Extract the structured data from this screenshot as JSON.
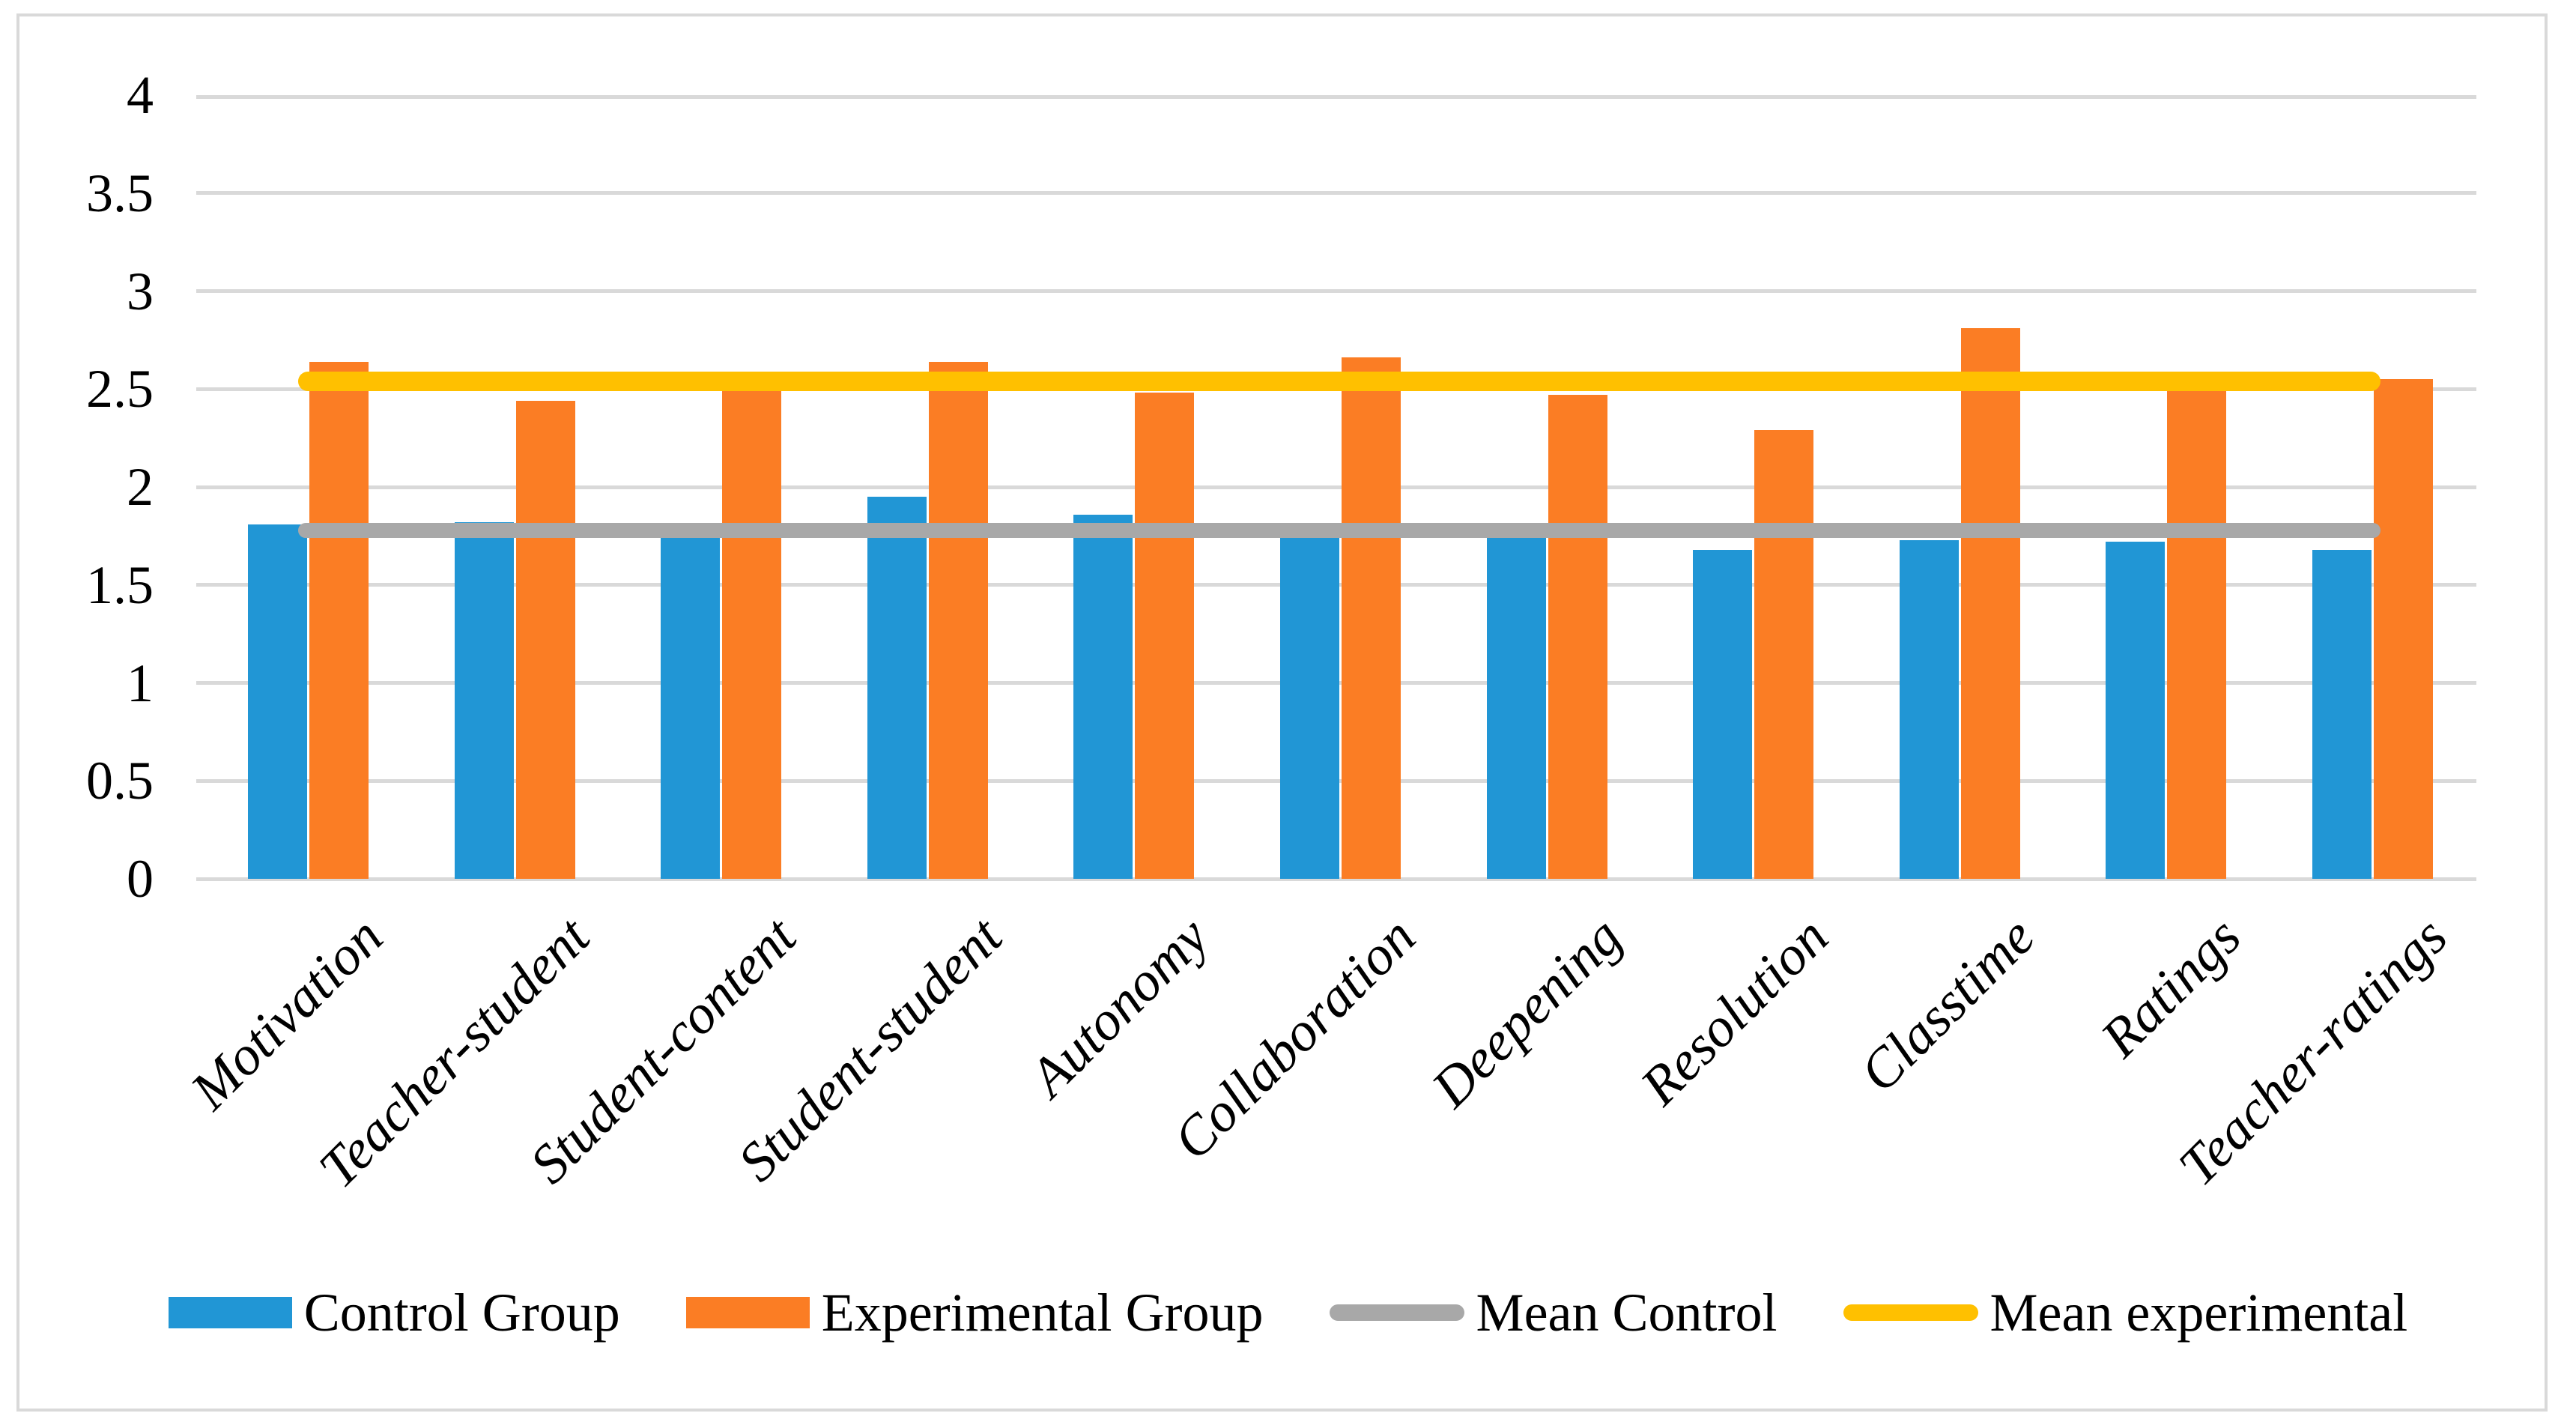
{
  "chart_data": {
    "type": "bar",
    "title": "",
    "xlabel": "",
    "ylabel": "",
    "ylim": [
      0,
      4
    ],
    "ytick_step": 0.5,
    "yticks": [
      "0",
      "0.5",
      "1",
      "1.5",
      "2",
      "2.5",
      "3",
      "3.5",
      "4"
    ],
    "grid": true,
    "legend_position": "bottom",
    "categories": [
      "Motivation",
      "Teacher-student",
      "Student-content",
      "Student-student",
      "Autonomy",
      "Collaboration",
      "Deepening",
      "Resolution",
      "Classtime",
      "Ratings",
      "Teacher-ratings"
    ],
    "series": [
      {
        "name": "Control Group",
        "color": "#2196D5",
        "values": [
          1.81,
          1.82,
          1.75,
          1.95,
          1.86,
          1.75,
          1.75,
          1.68,
          1.73,
          1.72,
          1.68
        ]
      },
      {
        "name": "Experimental Group",
        "color": "#FB7D24",
        "values": [
          2.64,
          2.44,
          2.49,
          2.64,
          2.48,
          2.66,
          2.47,
          2.29,
          2.81,
          2.51,
          2.55
        ]
      }
    ],
    "mean_lines": [
      {
        "name": "Mean Control",
        "color": "#A8A8A8",
        "value": 1.78
      },
      {
        "name": "Mean experimental",
        "color": "#FFC000",
        "value": 2.54
      }
    ]
  },
  "legend": {
    "items": [
      {
        "label": "Control Group",
        "marker": "bar",
        "color": "#2196D5"
      },
      {
        "label": "Experimental Group",
        "marker": "bar",
        "color": "#FB7D24"
      },
      {
        "label": "Mean Control",
        "marker": "line",
        "color": "#A8A8A8"
      },
      {
        "label": "Mean experimental",
        "marker": "line",
        "color": "#FFC000"
      }
    ]
  },
  "colors": {
    "gridline": "#D9D9D9",
    "frame_border": "#D9D9D9",
    "text": "#000000",
    "background": "#FFFFFF"
  }
}
